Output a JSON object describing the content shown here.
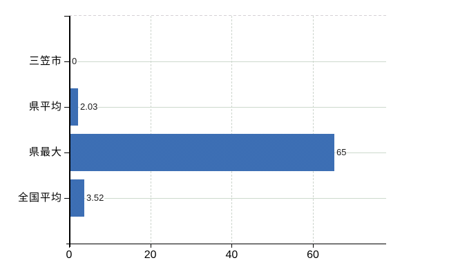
{
  "chart_data": {
    "type": "bar",
    "orientation": "horizontal",
    "title": "",
    "xlabel": "",
    "ylabel": "",
    "categories": [
      "三笠市",
      "県平均",
      "県最大",
      "全国平均"
    ],
    "values": [
      0,
      2.03,
      65,
      3.52
    ],
    "value_labels": [
      "0",
      "2.03",
      "65",
      "3.52"
    ],
    "x_ticks": [
      0,
      20,
      40,
      60
    ],
    "x_tick_labels": [
      "0",
      "20",
      "40",
      "60"
    ],
    "xlim": [
      0,
      78
    ],
    "grid": true,
    "legend": false,
    "bar_color": "#3c6eb4",
    "bar_color_dither_light": "#4a7ac0",
    "bar_color_dither_dark": "#2f63a8",
    "hgrid_color": "#ccd9cc",
    "vgrid_color": "#ccd4cc",
    "top_border_color": "#d5d0d5",
    "axis_color": "#000000",
    "background_color": "#ffffff"
  }
}
